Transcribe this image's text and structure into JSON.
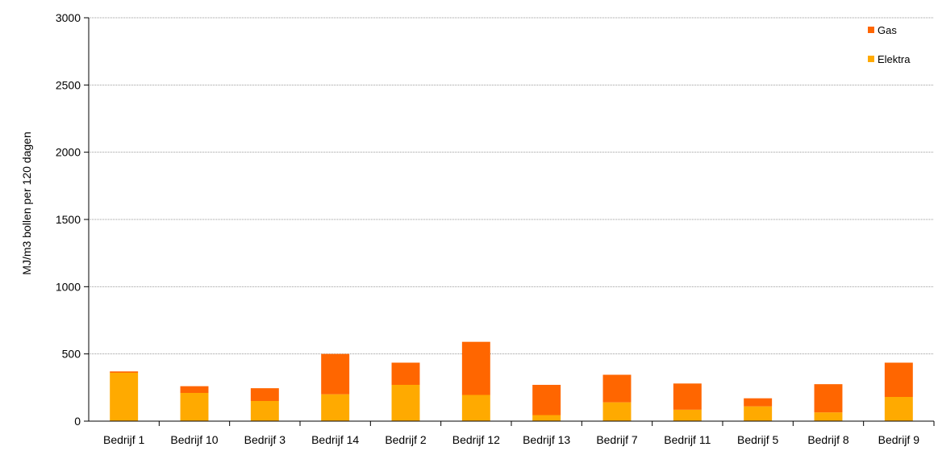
{
  "chart_data": {
    "type": "bar",
    "stacked": true,
    "categories": [
      "Bedrijf 1",
      "Bedrijf 10",
      "Bedrijf 3",
      "Bedrijf 14",
      "Bedrijf 2",
      "Bedrijf 12",
      "Bedrijf 13",
      "Bedrijf 7",
      "Bedrijf 11",
      "Bedrijf 5",
      "Bedrijf 8",
      "Bedrijf 9"
    ],
    "series": [
      {
        "name": "Elektra",
        "color": "#FFAA00",
        "values": [
          360,
          210,
          150,
          200,
          270,
          195,
          45,
          140,
          85,
          110,
          65,
          180
        ]
      },
      {
        "name": "Gas",
        "color": "#FF6600",
        "values": [
          10,
          50,
          95,
          300,
          165,
          395,
          225,
          205,
          195,
          60,
          210,
          255
        ]
      }
    ],
    "ylabel": "MJ/m3 bollen per 120 dagen",
    "xlabel": "",
    "ylim": [
      0,
      3000
    ],
    "yticks": [
      0,
      500,
      1000,
      1500,
      2000,
      2500,
      3000
    ],
    "grid": true,
    "legend": {
      "position": "top-right",
      "order": [
        "Gas",
        "Elektra"
      ]
    }
  }
}
